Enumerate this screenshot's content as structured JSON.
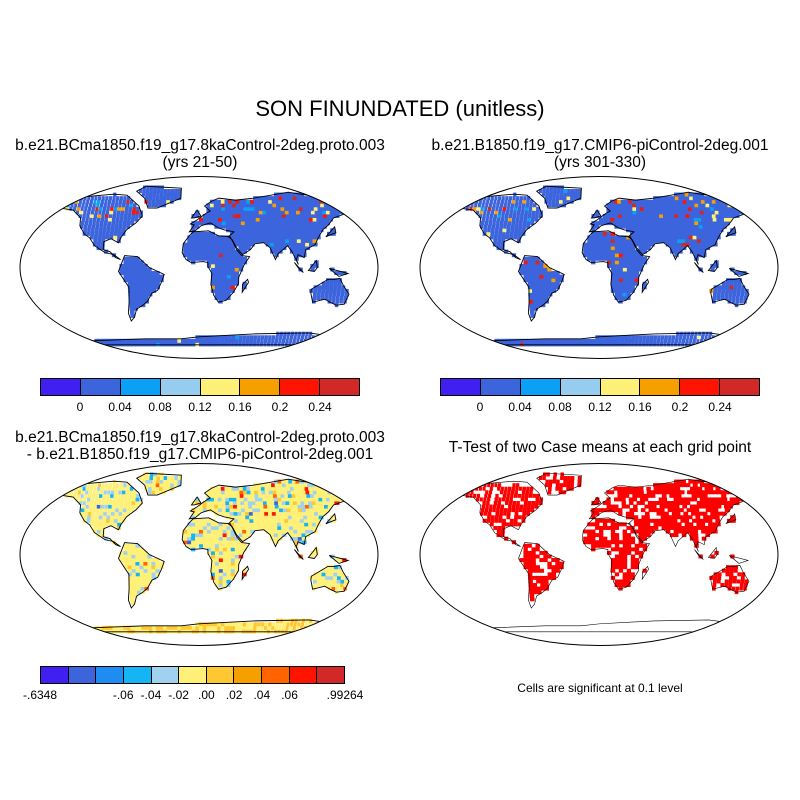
{
  "figure": {
    "title": "SON FINUNDATED (unitless)"
  },
  "panels": {
    "top_left": {
      "title_line1": "b.e21.BCma1850.f19_g17.8kaControl-2deg.proto.003",
      "title_line2": "(yrs 21-50)"
    },
    "top_right": {
      "title_line1": "b.e21.B1850.f19_g17.CMIP6-piControl-2deg.001",
      "title_line2": "(yrs 301-330)"
    },
    "bottom_left": {
      "title_line1": "b.e21.BCma1850.f19_g17.8kaControl-2deg.proto.003",
      "title_line2": "- b.e21.B1850.f19_g17.CMIP6-piControl-2deg.001"
    },
    "bottom_right": {
      "title_line1": "T-Test of two Case means at each grid point",
      "note": "Cells are significant at 0.1 level"
    }
  },
  "colorbars": {
    "abs": {
      "colors": [
        "#4020f0",
        "#3c64dc",
        "#0aa0f5",
        "#96cdee",
        "#fff078",
        "#f5a000",
        "#ff1400",
        "#d22828"
      ],
      "labels": [
        "0",
        "0.04",
        "0.08",
        "0.12",
        "0.16",
        "0.2",
        "0.24"
      ]
    },
    "diff": {
      "colors": [
        "#4020f0",
        "#3c64dc",
        "#1e8cf0",
        "#14b4f5",
        "#a0d2f0",
        "#fff078",
        "#ffc832",
        "#f5a000",
        "#ff6400",
        "#ff1400",
        "#d22828"
      ],
      "labels": [
        "-.6348",
        "-.06",
        "-.04",
        "-.02",
        ".00",
        ".02",
        ".04",
        ".06",
        ".99264"
      ]
    }
  }
}
